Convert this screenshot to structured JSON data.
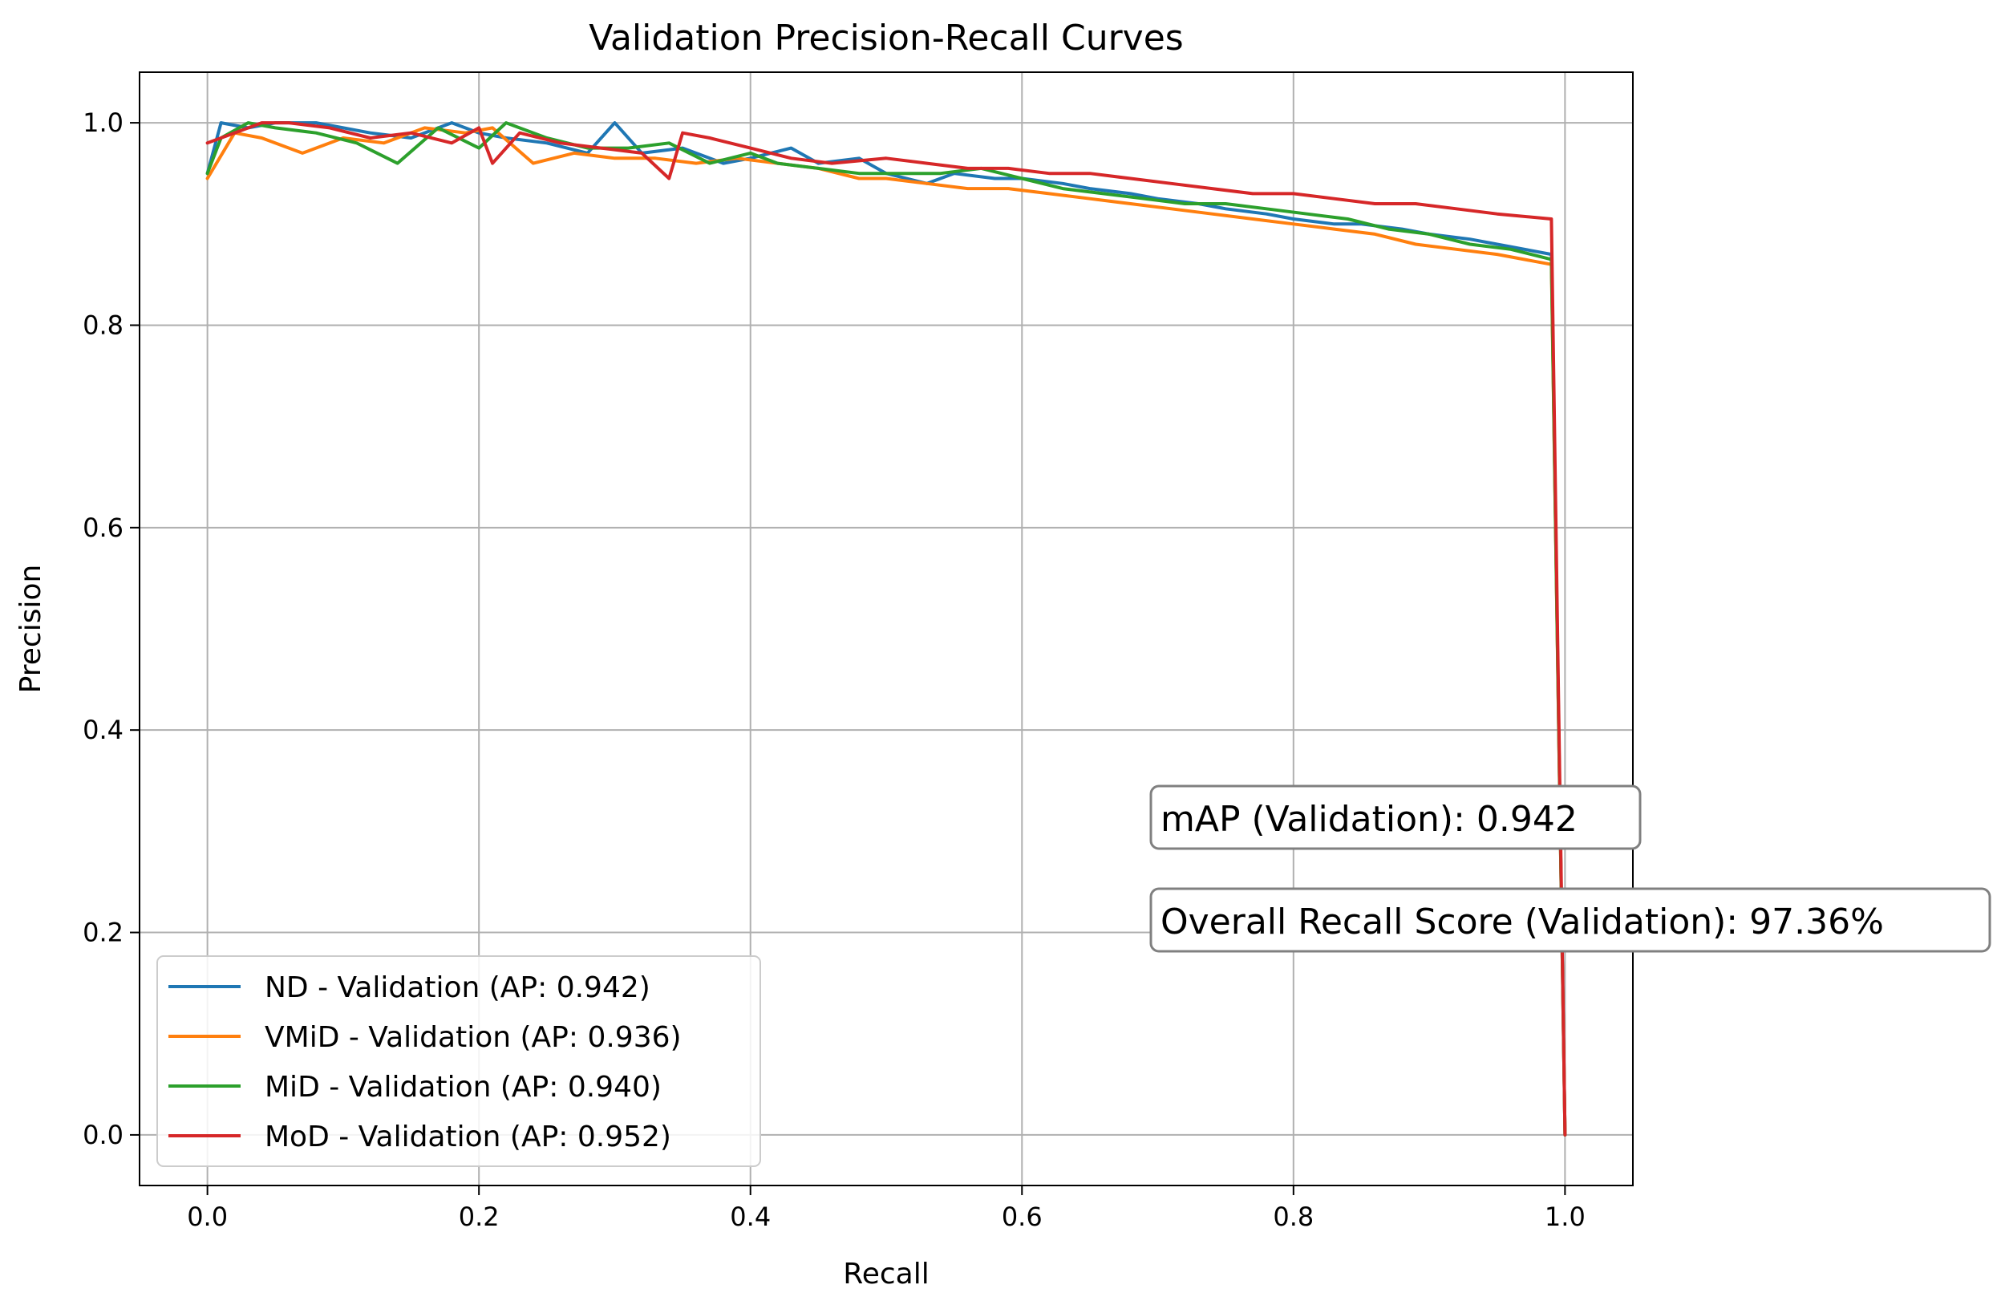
{
  "chart_data": {
    "type": "line",
    "title": "Validation Precision-Recall Curves",
    "xlabel": "Recall",
    "ylabel": "Precision",
    "xlim": [
      -0.05,
      1.05
    ],
    "ylim": [
      -0.05,
      1.05
    ],
    "xticks": [
      0.0,
      0.2,
      0.4,
      0.6,
      0.8,
      1.0
    ],
    "yticks": [
      0.0,
      0.2,
      0.4,
      0.6,
      0.8,
      1.0
    ],
    "xtick_labels": [
      "0.0",
      "0.2",
      "0.4",
      "0.6",
      "0.8",
      "1.0"
    ],
    "ytick_labels": [
      "0.0",
      "0.2",
      "0.4",
      "0.6",
      "0.8",
      "1.0"
    ],
    "grid": true,
    "legend_position": "lower-left",
    "series": [
      {
        "name": "ND - Validation (AP: 0.942)",
        "color": "#1f77b4",
        "x": [
          0.0,
          0.01,
          0.03,
          0.05,
          0.08,
          0.1,
          0.12,
          0.15,
          0.18,
          0.2,
          0.22,
          0.25,
          0.28,
          0.3,
          0.32,
          0.35,
          0.38,
          0.4,
          0.43,
          0.45,
          0.48,
          0.5,
          0.53,
          0.55,
          0.58,
          0.6,
          0.63,
          0.65,
          0.68,
          0.7,
          0.73,
          0.75,
          0.78,
          0.8,
          0.83,
          0.85,
          0.88,
          0.9,
          0.93,
          0.95,
          0.99,
          1.0
        ],
        "y": [
          0.95,
          1.0,
          0.995,
          1.0,
          1.0,
          0.995,
          0.99,
          0.985,
          1.0,
          0.99,
          0.985,
          0.98,
          0.97,
          1.0,
          0.97,
          0.975,
          0.96,
          0.965,
          0.975,
          0.96,
          0.965,
          0.95,
          0.94,
          0.95,
          0.945,
          0.945,
          0.94,
          0.935,
          0.93,
          0.925,
          0.92,
          0.915,
          0.91,
          0.905,
          0.9,
          0.9,
          0.895,
          0.89,
          0.885,
          0.88,
          0.87,
          0.0
        ]
      },
      {
        "name": "VMiD - Validation (AP: 0.936)",
        "color": "#ff7f0e",
        "x": [
          0.0,
          0.02,
          0.04,
          0.07,
          0.1,
          0.13,
          0.16,
          0.19,
          0.21,
          0.24,
          0.27,
          0.3,
          0.33,
          0.36,
          0.39,
          0.42,
          0.45,
          0.48,
          0.5,
          0.53,
          0.56,
          0.59,
          0.62,
          0.65,
          0.68,
          0.71,
          0.74,
          0.77,
          0.8,
          0.83,
          0.86,
          0.89,
          0.92,
          0.95,
          0.99,
          1.0
        ],
        "y": [
          0.945,
          0.99,
          0.985,
          0.97,
          0.985,
          0.98,
          0.995,
          0.99,
          0.995,
          0.96,
          0.97,
          0.965,
          0.965,
          0.96,
          0.965,
          0.96,
          0.955,
          0.945,
          0.945,
          0.94,
          0.935,
          0.935,
          0.93,
          0.925,
          0.92,
          0.915,
          0.91,
          0.905,
          0.9,
          0.895,
          0.89,
          0.88,
          0.875,
          0.87,
          0.86,
          0.0
        ]
      },
      {
        "name": "MiD - Validation (AP: 0.940)",
        "color": "#2ca02c",
        "x": [
          0.0,
          0.01,
          0.03,
          0.05,
          0.08,
          0.11,
          0.14,
          0.17,
          0.2,
          0.22,
          0.25,
          0.28,
          0.31,
          0.34,
          0.37,
          0.4,
          0.42,
          0.45,
          0.48,
          0.51,
          0.54,
          0.57,
          0.6,
          0.63,
          0.66,
          0.69,
          0.72,
          0.75,
          0.78,
          0.81,
          0.84,
          0.87,
          0.9,
          0.93,
          0.96,
          0.99,
          1.0
        ],
        "y": [
          0.95,
          0.985,
          1.0,
          0.995,
          0.99,
          0.98,
          0.96,
          0.995,
          0.975,
          1.0,
          0.985,
          0.975,
          0.975,
          0.98,
          0.96,
          0.97,
          0.96,
          0.955,
          0.95,
          0.95,
          0.95,
          0.955,
          0.945,
          0.935,
          0.93,
          0.925,
          0.92,
          0.92,
          0.915,
          0.91,
          0.905,
          0.895,
          0.89,
          0.88,
          0.875,
          0.865,
          0.0
        ]
      },
      {
        "name": "MoD - Validation (AP: 0.952)",
        "color": "#d62728",
        "x": [
          0.0,
          0.02,
          0.04,
          0.06,
          0.09,
          0.12,
          0.15,
          0.18,
          0.2,
          0.21,
          0.23,
          0.26,
          0.29,
          0.32,
          0.34,
          0.35,
          0.37,
          0.4,
          0.43,
          0.46,
          0.5,
          0.53,
          0.56,
          0.59,
          0.62,
          0.65,
          0.68,
          0.71,
          0.74,
          0.77,
          0.8,
          0.83,
          0.86,
          0.89,
          0.92,
          0.95,
          0.99,
          1.0
        ],
        "y": [
          0.98,
          0.99,
          1.0,
          1.0,
          0.995,
          0.985,
          0.99,
          0.98,
          0.995,
          0.96,
          0.99,
          0.98,
          0.975,
          0.97,
          0.945,
          0.99,
          0.985,
          0.975,
          0.965,
          0.96,
          0.965,
          0.96,
          0.955,
          0.955,
          0.95,
          0.95,
          0.945,
          0.94,
          0.935,
          0.93,
          0.93,
          0.925,
          0.92,
          0.92,
          0.915,
          0.91,
          0.905,
          0.0
        ]
      }
    ],
    "annotations": [
      {
        "text": "mAP (Validation): 0.942"
      },
      {
        "text": "Overall Recall Score (Validation): 97.36%"
      }
    ]
  }
}
